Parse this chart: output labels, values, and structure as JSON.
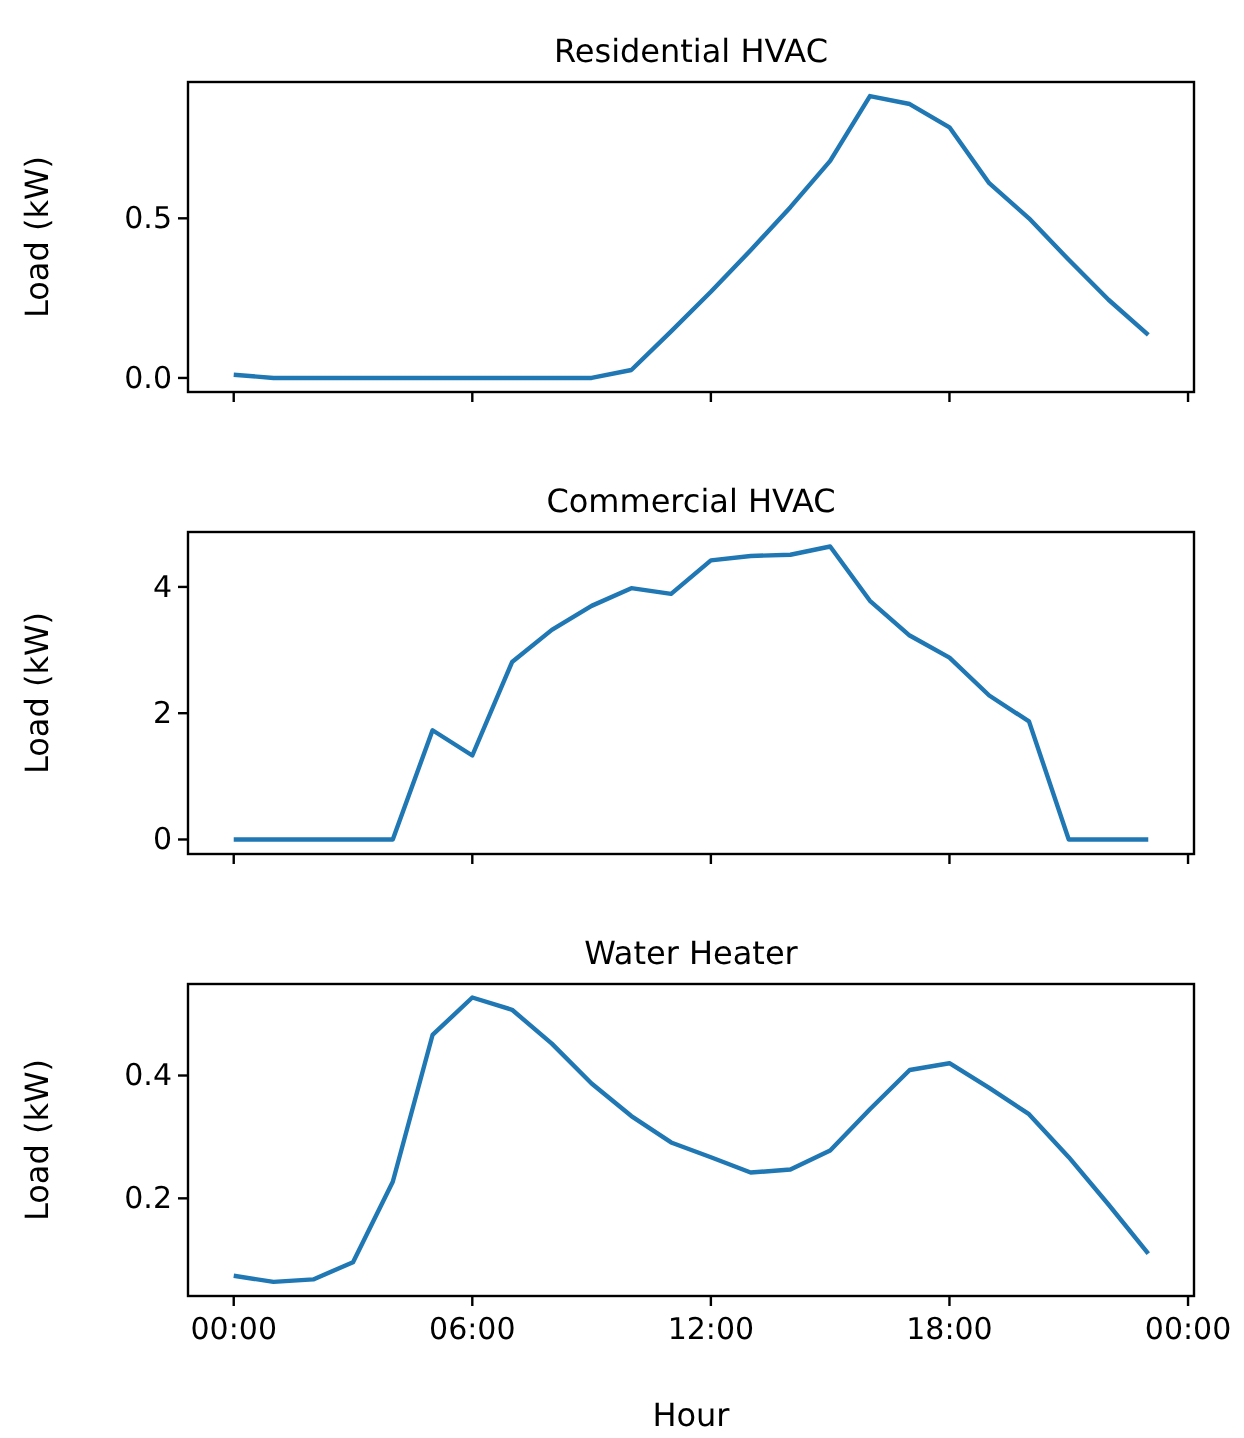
{
  "chart_data": [
    {
      "type": "line",
      "title": "Residential HVAC",
      "ylabel": "Load (kW)",
      "x": [
        0,
        1,
        2,
        3,
        4,
        5,
        6,
        7,
        8,
        9,
        10,
        11,
        12,
        13,
        14,
        15,
        16,
        17,
        18,
        19,
        20,
        21,
        22,
        23
      ],
      "series": [
        {
          "color": "#1f77b4",
          "values": [
            0.01,
            0,
            0,
            0,
            0,
            0,
            0,
            0,
            0,
            0,
            0.025,
            0.146,
            0.27,
            0.4,
            0.535,
            0.68,
            0.883,
            0.858,
            0.785,
            0.61,
            0.5,
            0.37,
            0.245,
            0.135
          ]
        }
      ],
      "xlim": [
        -1.15,
        24.15
      ],
      "xticks": [
        0,
        6,
        12,
        18,
        24
      ],
      "ylim": [
        -0.044,
        0.927
      ],
      "yticks": [
        {
          "value": 0,
          "label": "0.0"
        },
        0.5
      ],
      "tick_labels": "y",
      "grid": false
    },
    {
      "type": "line",
      "title": "Commercial HVAC",
      "ylabel": "Load (kW)",
      "x": [
        0,
        1,
        2,
        3,
        4,
        5,
        6,
        7,
        8,
        9,
        10,
        11,
        12,
        13,
        14,
        15,
        16,
        17,
        18,
        19,
        20,
        21,
        22,
        23
      ],
      "series": [
        {
          "color": "#1f77b4",
          "values": [
            0,
            0,
            0,
            0,
            0,
            1.73,
            1.33,
            2.81,
            3.32,
            3.7,
            3.98,
            3.89,
            4.42,
            4.49,
            4.51,
            4.64,
            3.78,
            3.23,
            2.88,
            2.28,
            1.87,
            0,
            0,
            0
          ]
        }
      ],
      "xlim": [
        -1.15,
        24.15
      ],
      "xticks": [
        0,
        6,
        12,
        18,
        24
      ],
      "ylim": [
        -0.23,
        4.87
      ],
      "yticks": [
        0,
        2,
        4
      ],
      "tick_labels": "y",
      "grid": false
    },
    {
      "type": "line",
      "title": "Water Heater",
      "xlabel": "Hour",
      "ylabel": "Load (kW)",
      "x": [
        0,
        1,
        2,
        3,
        4,
        5,
        6,
        7,
        8,
        9,
        10,
        11,
        12,
        13,
        14,
        15,
        16,
        17,
        18,
        19,
        20,
        21,
        22,
        23
      ],
      "series": [
        {
          "color": "#1f77b4",
          "values": [
            0.074,
            0.064,
            0.068,
            0.096,
            0.227,
            0.466,
            0.527,
            0.507,
            0.452,
            0.387,
            0.334,
            0.291,
            0.267,
            0.242,
            0.247,
            0.278,
            0.345,
            0.409,
            0.42,
            0.38,
            0.337,
            0.267,
            0.19,
            0.11
          ]
        }
      ],
      "xlim": [
        -1.15,
        24.15
      ],
      "xticks": [
        {
          "value": 0,
          "label": "00:00"
        },
        {
          "value": 6,
          "label": "06:00"
        },
        {
          "value": 12,
          "label": "12:00"
        },
        {
          "value": 18,
          "label": "18:00"
        },
        {
          "value": 24,
          "label": "00:00"
        }
      ],
      "ylim": [
        0.041,
        0.549
      ],
      "yticks": [
        0.2,
        0.4
      ],
      "grid": false
    }
  ]
}
